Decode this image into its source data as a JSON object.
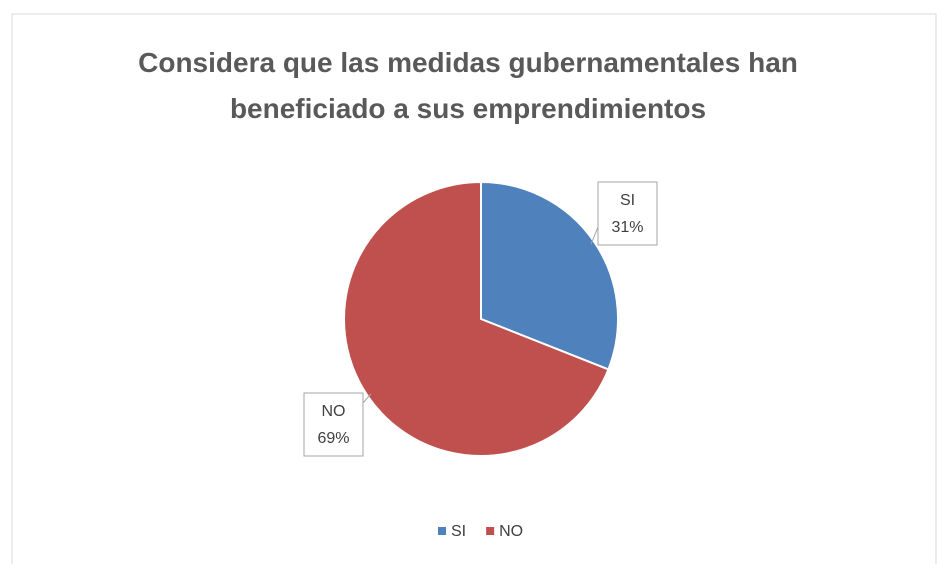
{
  "chart_data": {
    "type": "pie",
    "title": "Considera que las medidas gubernamentales han beneficiado a sus emprendimientos",
    "categories": [
      "SI",
      "NO"
    ],
    "values": [
      31,
      69
    ],
    "value_labels": [
      "31%",
      "69%"
    ],
    "colors": [
      "#4f81bd",
      "#c0504d"
    ],
    "legend": "bottom"
  }
}
